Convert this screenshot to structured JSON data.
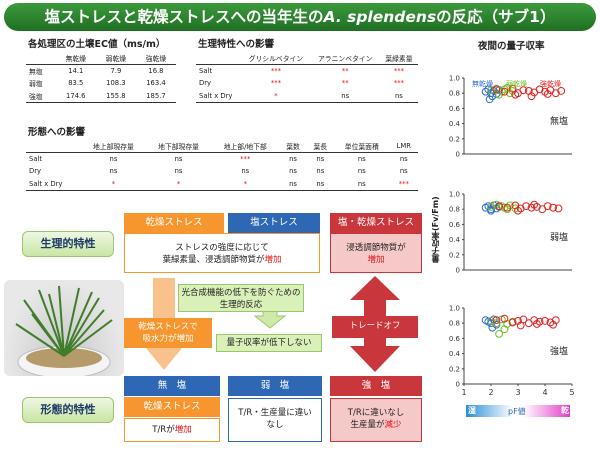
{
  "title": {
    "pre": "塩ストレスと乾燥ストレスへの当年生の",
    "italic": "A. splendens",
    "post": "の反応（サブ1）"
  },
  "ec": {
    "heading": "各処理区の土壌EC値（ms/m）",
    "cols": [
      "無乾燥",
      "弱乾燥",
      "強乾燥"
    ],
    "rows": [
      {
        "label": "無塩",
        "values": [
          "14.1",
          "7.9",
          "16.8"
        ]
      },
      {
        "label": "弱塩",
        "values": [
          "83.5",
          "108.3",
          "163.4"
        ]
      },
      {
        "label": "強塩",
        "values": [
          "174.6",
          "155.8",
          "185.7"
        ]
      }
    ]
  },
  "physio": {
    "heading": "生理特性への影響",
    "cols": [
      "グリシルベタイン",
      "アラニンベタイン",
      "葉緑素量"
    ],
    "rows": [
      {
        "label": "Salt",
        "values": [
          "***",
          "**",
          "***"
        ]
      },
      {
        "label": "Dry",
        "values": [
          "***",
          "**",
          "***"
        ]
      },
      {
        "label": "Salt x Dry",
        "values": [
          "*",
          "ns",
          "ns"
        ]
      }
    ]
  },
  "morph": {
    "heading": "形態への影響",
    "cols": [
      "地上部現存量",
      "地下部現存量",
      "地上部/地下部",
      "葉数",
      "葉長",
      "単位葉面積",
      "LMR"
    ],
    "rows": [
      {
        "label": "Salt",
        "values": [
          "ns",
          "ns",
          "***",
          "ns",
          "ns",
          "ns",
          "ns"
        ]
      },
      {
        "label": "Dry",
        "values": [
          "ns",
          "ns",
          "ns",
          "ns",
          "ns",
          "ns",
          "ns"
        ]
      },
      {
        "label": "Salt x Dry",
        "values": [
          "*",
          "*",
          "*",
          "ns",
          "ns",
          "ns",
          "***"
        ]
      }
    ]
  },
  "chart_area": {
    "title": "夜間の量子収率",
    "ylabel": "量子収率(Fv/Fm)",
    "legend": [
      "無乾燥",
      "弱乾燥",
      "強乾燥"
    ],
    "xbar_label": "pF値",
    "xbar_left": "湿",
    "xbar_right": "乾"
  },
  "chart_data": [
    {
      "type": "scatter",
      "label": "無塩",
      "xlim": [
        1,
        5
      ],
      "ylim": [
        0,
        1.0
      ],
      "xticks": [
        1,
        2,
        3,
        4,
        5
      ],
      "yticks": [
        0,
        0.2,
        0.4,
        0.6,
        0.8,
        1.0
      ],
      "series": [
        {
          "name": "無乾燥",
          "x": [
            1.8,
            1.9,
            2.0,
            2.1,
            2.2,
            2.3,
            1.95,
            2.05
          ],
          "y": [
            0.82,
            0.85,
            0.8,
            0.83,
            0.79,
            0.84,
            0.72,
            0.76
          ]
        },
        {
          "name": "弱乾燥",
          "x": [
            2.0,
            2.2,
            2.4,
            2.5,
            2.7,
            2.8,
            2.3,
            2.6
          ],
          "y": [
            0.84,
            0.86,
            0.82,
            0.85,
            0.8,
            0.83,
            0.78,
            0.87
          ]
        },
        {
          "name": "強乾燥",
          "x": [
            2.2,
            2.5,
            2.8,
            3.0,
            3.2,
            3.4,
            3.6,
            3.8,
            4.0,
            4.2,
            4.4,
            4.6,
            2.9,
            3.5,
            4.1
          ],
          "y": [
            0.85,
            0.82,
            0.86,
            0.8,
            0.84,
            0.83,
            0.81,
            0.85,
            0.82,
            0.84,
            0.8,
            0.83,
            0.78,
            0.76,
            0.79
          ]
        }
      ]
    },
    {
      "type": "scatter",
      "label": "弱塩",
      "xlim": [
        1,
        5
      ],
      "ylim": [
        0,
        1.0
      ],
      "xticks": [
        1,
        2,
        3,
        4,
        5
      ],
      "yticks": [
        0,
        0.2,
        0.4,
        0.6,
        0.8,
        1.0
      ],
      "series": [
        {
          "name": "無乾燥",
          "x": [
            1.8,
            1.9,
            2.0,
            2.1,
            2.2,
            2.3,
            2.0
          ],
          "y": [
            0.82,
            0.84,
            0.8,
            0.85,
            0.81,
            0.83,
            0.78
          ]
        },
        {
          "name": "弱乾燥",
          "x": [
            2.0,
            2.2,
            2.4,
            2.5,
            2.7,
            2.9,
            2.6
          ],
          "y": [
            0.83,
            0.86,
            0.84,
            0.82,
            0.85,
            0.81,
            0.8
          ]
        },
        {
          "name": "強乾燥",
          "x": [
            2.3,
            2.6,
            2.9,
            3.1,
            3.3,
            3.5,
            3.7,
            3.9,
            4.1,
            4.3,
            4.5,
            3.0,
            3.6
          ],
          "y": [
            0.84,
            0.82,
            0.85,
            0.81,
            0.84,
            0.82,
            0.83,
            0.8,
            0.84,
            0.82,
            0.81,
            0.78,
            0.86
          ]
        }
      ]
    },
    {
      "type": "scatter",
      "label": "強塩",
      "xlim": [
        1,
        5
      ],
      "ylim": [
        0,
        1.0
      ],
      "xticks": [
        1,
        2,
        3,
        4,
        5
      ],
      "yticks": [
        0,
        0.2,
        0.4,
        0.6,
        0.8,
        1.0
      ],
      "series": [
        {
          "name": "無乾燥",
          "x": [
            1.8,
            1.9,
            2.0,
            2.1,
            2.2,
            2.05
          ],
          "y": [
            0.84,
            0.82,
            0.8,
            0.85,
            0.78,
            0.74
          ]
        },
        {
          "name": "弱乾燥",
          "x": [
            2.0,
            2.2,
            2.4,
            2.6,
            2.8,
            2.3,
            2.5
          ],
          "y": [
            0.83,
            0.8,
            0.85,
            0.79,
            0.82,
            0.66,
            0.72
          ]
        },
        {
          "name": "強乾燥",
          "x": [
            2.2,
            2.5,
            2.8,
            3.0,
            3.2,
            3.4,
            3.6,
            3.8,
            4.0,
            4.2,
            4.4,
            3.1,
            3.7,
            4.3
          ],
          "y": [
            0.84,
            0.86,
            0.81,
            0.83,
            0.85,
            0.8,
            0.84,
            0.82,
            0.83,
            0.81,
            0.84,
            0.77,
            0.79,
            0.78
          ]
        }
      ]
    }
  ],
  "series_colors": {
    "無乾燥": "#2f6bd3",
    "弱乾燥": "#6fbf1e",
    "強乾燥": "#e52020"
  },
  "diagram": {
    "physio_label": "生理的特性",
    "morph_label": "形態的特性",
    "drought_header": "乾燥ストレス",
    "salt_header": "塩ストレス",
    "both_header": "塩・乾燥ストレス",
    "main_box": {
      "line1": "ストレスの強度に応じて",
      "line2_pre": "葉緑素量、浸透調節物質が",
      "line2_hl": "増加"
    },
    "both_box": {
      "line1": "浸透調節物質が",
      "line2_hl": "増加"
    },
    "green_box1": {
      "line1": "光合成機能の低下を防ぐための",
      "line2": "生理的反応"
    },
    "green_box2": "量子収率が低下しない",
    "orange_box": {
      "line1": "乾燥ストレスで",
      "line2": "吸水力が増加"
    },
    "tradeoff": "トレードオフ",
    "bottom": {
      "h1": "無　塩",
      "h2": "弱　塩",
      "h3": "強　塩",
      "drought": "乾燥ストレス",
      "b1_pre": "T/Rが",
      "b1_hl": "増加",
      "b2": "T/R・生産量に違い\nなし",
      "b3_line1": "T/Rに違いなし",
      "b3_pre": "生産量が",
      "b3_hl": "減少"
    }
  }
}
